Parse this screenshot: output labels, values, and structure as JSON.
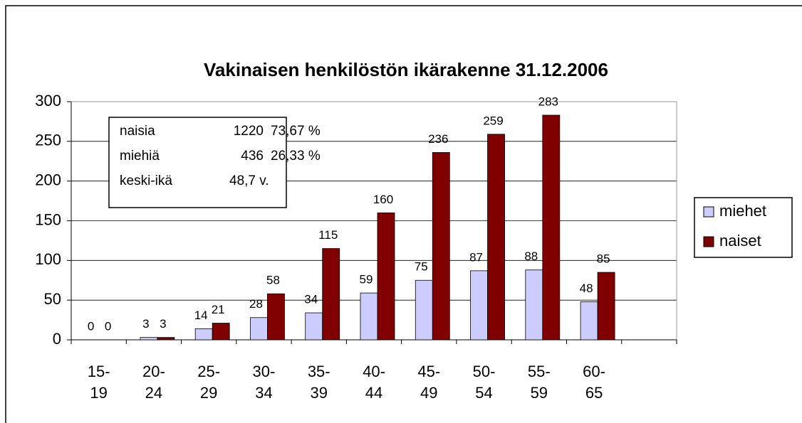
{
  "chart_data": {
    "type": "bar",
    "title": "Vakinaisen henkilöstön ikärakenne 31.12.2006",
    "categories": [
      "15-\n19",
      "20-\n24",
      "25-\n29",
      "30-\n34",
      "35-\n39",
      "40-\n44",
      "45-\n49",
      "50-\n54",
      "55-\n59",
      "60-\n65",
      null
    ],
    "series": [
      {
        "name": "miehet",
        "color": "#ccccff",
        "values": [
          0,
          3,
          14,
          28,
          34,
          59,
          75,
          87,
          88,
          48,
          null
        ]
      },
      {
        "name": "naiset",
        "color": "#800000",
        "values": [
          0,
          3,
          21,
          58,
          115,
          160,
          236,
          259,
          283,
          85,
          null
        ]
      }
    ],
    "ylim": [
      0,
      300
    ],
    "yticks": [
      0,
      50,
      100,
      150,
      200,
      250,
      300
    ],
    "grid": true,
    "legend": "right",
    "annotation": [
      [
        "naisia",
        "1220",
        "73,67 %"
      ],
      [
        "miehiä",
        "436",
        "26,33 %"
      ],
      [
        "keski-ikä",
        "48,7 v."
      ]
    ]
  }
}
